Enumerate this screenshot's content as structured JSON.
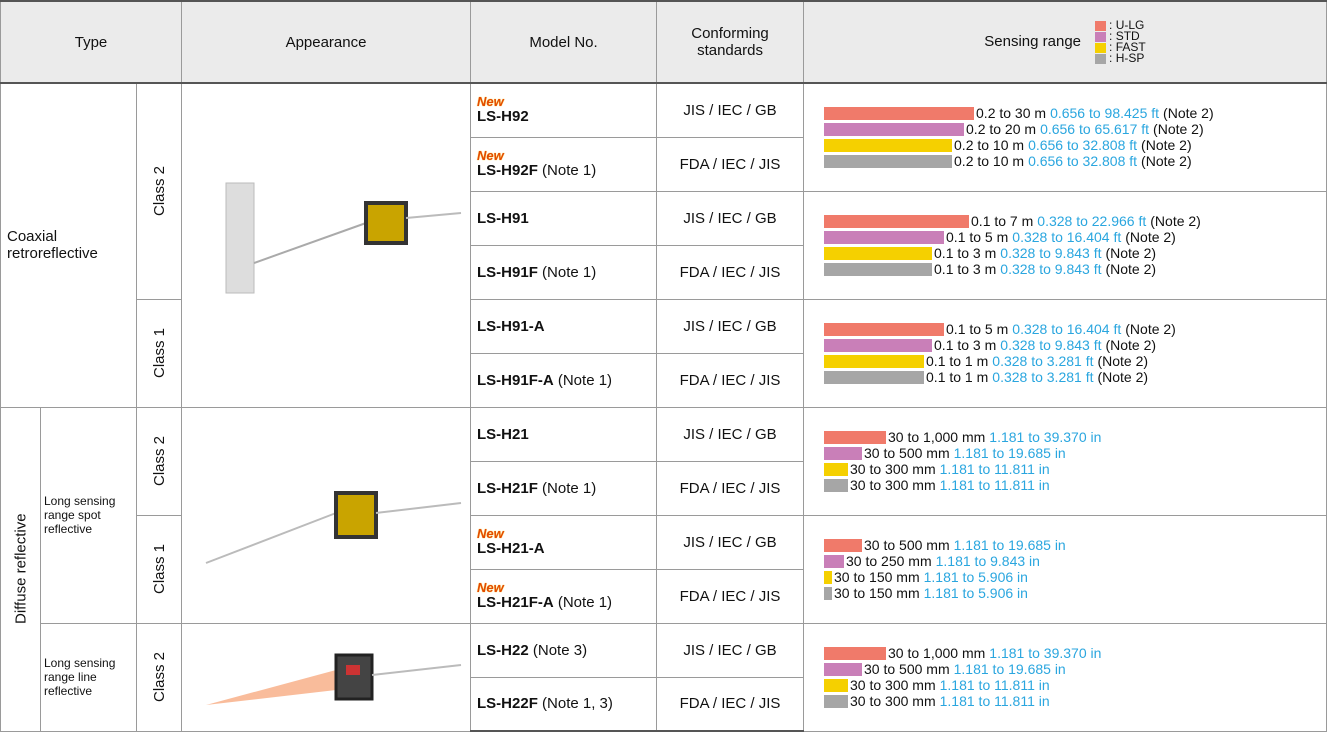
{
  "header": {
    "type": "Type",
    "appearance": "Appearance",
    "model_no": "Model No.",
    "standards": "Conforming standards",
    "sensing_range": "Sensing range",
    "legend": [
      {
        "label": ": U-LG",
        "color": "#f07a6a"
      },
      {
        "label": ": STD",
        "color": "#c97fb8"
      },
      {
        "label": ": FAST",
        "color": "#f5d000"
      },
      {
        "label": ": H-SP",
        "color": "#a6a6a6"
      }
    ]
  },
  "sections": [
    {
      "label": "Coaxial retroreflective",
      "subgroups": [
        {
          "classes": [
            {
              "label": "Class 2",
              "models": [
                {
                  "badge": "New",
                  "name": "LS-H92",
                  "standards": "JIS / IEC / GB"
                },
                {
                  "badge": "New",
                  "name": "LS-H92F",
                  "note": "(Note 1)",
                  "standards": "FDA / IEC / JIS"
                },
                {
                  "name": "LS-H91",
                  "standards": "JIS / IEC / GB"
                },
                {
                  "name": "LS-H91F",
                  "note": "(Note 1)",
                  "standards": "FDA / IEC / JIS"
                }
              ],
              "ranges": [
                [
                  {
                    "metric": "0.2 to 30 m",
                    "imperial": "0.656 to 98.425 ft",
                    "note": "(Note 2)"
                  },
                  {
                    "metric": "0.2 to 20 m",
                    "imperial": "0.656 to 65.617 ft",
                    "note": "(Note 2)"
                  },
                  {
                    "metric": "0.2 to 10 m",
                    "imperial": "0.656 to 32.808 ft",
                    "note": "(Note 2)"
                  },
                  {
                    "metric": "0.2 to 10 m",
                    "imperial": "0.656 to 32.808 ft",
                    "note": "(Note 2)"
                  }
                ],
                [
                  {
                    "metric": "0.1 to 7 m",
                    "imperial": "0.328 to 22.966 ft",
                    "note": "(Note 2)"
                  },
                  {
                    "metric": "0.1 to 5 m",
                    "imperial": "0.328 to 16.404 ft",
                    "note": "(Note 2)"
                  },
                  {
                    "metric": "0.1 to 3 m",
                    "imperial": "0.328 to 9.843 ft",
                    "note": "(Note 2)"
                  },
                  {
                    "metric": "0.1 to 3 m",
                    "imperial": "0.328 to 9.843 ft",
                    "note": "(Note 2)"
                  }
                ]
              ]
            },
            {
              "label": "Class 1",
              "models": [
                {
                  "name": "LS-H91-A",
                  "standards": "JIS / IEC / GB"
                },
                {
                  "name": "LS-H91F-A",
                  "note": "(Note 1)",
                  "standards": "FDA / IEC / JIS"
                }
              ],
              "ranges": [
                [
                  {
                    "metric": "0.1 to 5 m",
                    "imperial": "0.328 to 16.404 ft",
                    "note": "(Note 2)"
                  },
                  {
                    "metric": "0.1 to 3 m",
                    "imperial": "0.328 to 9.843 ft",
                    "note": "(Note 2)"
                  },
                  {
                    "metric": "0.1 to 1 m",
                    "imperial": "0.328 to 3.281 ft",
                    "note": "(Note 2)"
                  },
                  {
                    "metric": "0.1 to 1 m",
                    "imperial": "0.328 to 3.281 ft",
                    "note": "(Note 2)"
                  }
                ]
              ]
            }
          ]
        }
      ]
    },
    {
      "label": "Diffuse reflective",
      "subgroups": [
        {
          "label": "Long sensing range spot reflective",
          "classes": [
            {
              "label": "Class 2",
              "models": [
                {
                  "name": "LS-H21",
                  "standards": "JIS / IEC / GB"
                },
                {
                  "name": "LS-H21F",
                  "note": "(Note 1)",
                  "standards": "FDA / IEC / JIS"
                }
              ],
              "ranges": [
                [
                  {
                    "metric": "30 to 1,000 mm",
                    "imperial": "1.181 to 39.370 in"
                  },
                  {
                    "metric": "30 to 500 mm",
                    "imperial": "1.181 to 19.685 in"
                  },
                  {
                    "metric": "30 to 300 mm",
                    "imperial": "1.181 to 11.811 in"
                  },
                  {
                    "metric": "30 to 300 mm",
                    "imperial": "1.181 to 11.811 in"
                  }
                ]
              ]
            },
            {
              "label": "Class 1",
              "models": [
                {
                  "badge": "New",
                  "name": "LS-H21-A",
                  "standards": "JIS / IEC / GB"
                },
                {
                  "badge": "New",
                  "name": "LS-H21F-A",
                  "note": "(Note 1)",
                  "standards": "FDA / IEC / JIS"
                }
              ],
              "ranges": [
                [
                  {
                    "metric": "30 to 500 mm",
                    "imperial": "1.181 to 19.685 in"
                  },
                  {
                    "metric": "30 to 250 mm",
                    "imperial": "1.181 to 9.843 in"
                  },
                  {
                    "metric": "30 to 150 mm",
                    "imperial": "1.181 to 5.906 in"
                  },
                  {
                    "metric": "30 to 150 mm",
                    "imperial": "1.181 to 5.906 in"
                  }
                ]
              ]
            }
          ]
        },
        {
          "label": "Long sensing range line reflective",
          "classes": [
            {
              "label": "Class 2",
              "models": [
                {
                  "name": "LS-H22",
                  "note": "(Note 3)",
                  "standards": "JIS / IEC / GB"
                },
                {
                  "name": "LS-H22F",
                  "note": "(Note 1, 3)",
                  "standards": "FDA / IEC / JIS"
                }
              ],
              "ranges": [
                [
                  {
                    "metric": "30 to 1,000 mm",
                    "imperial": "1.181 to 39.370 in"
                  },
                  {
                    "metric": "30 to 500 mm",
                    "imperial": "1.181 to 19.685 in"
                  },
                  {
                    "metric": "30 to 300 mm",
                    "imperial": "1.181 to 11.811 in"
                  },
                  {
                    "metric": "30 to 300 mm",
                    "imperial": "1.181 to 11.811 in"
                  }
                ]
              ]
            }
          ]
        }
      ]
    }
  ]
}
